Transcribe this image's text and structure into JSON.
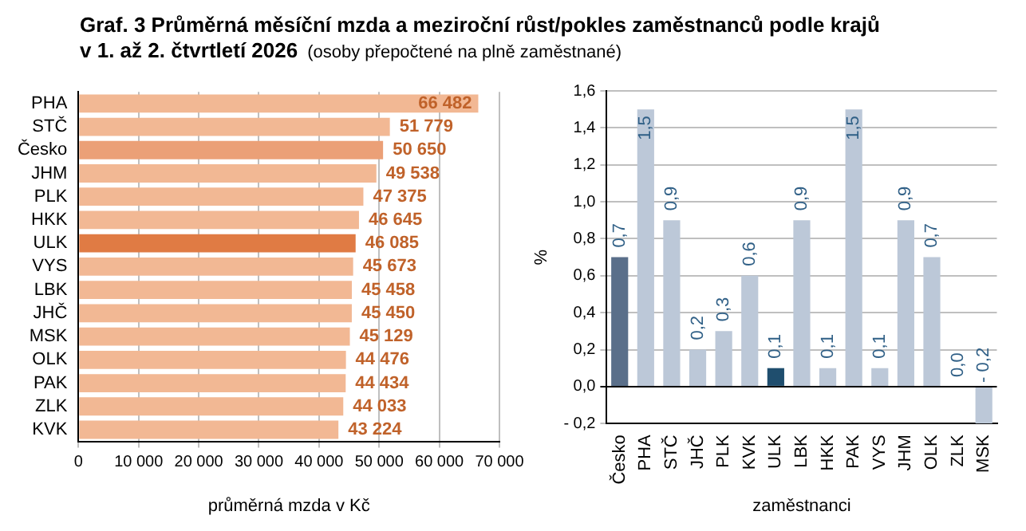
{
  "chart_data": [
    {
      "type": "bar",
      "title": "Graf. 3 Průměrná měsíční mzda a meziroční růst/pokles  zaměstnanců podle krajů v 1. až 2. čtvrtletí 2026",
      "subtitle": "(osoby přepočtené na plně zaměstnané)",
      "orientation": "horizontal",
      "xlabel": "průměrná mzda v Kč",
      "categories": [
        "PHA",
        "STČ",
        "Česko",
        "JHM",
        "PLK",
        "HKK",
        "ULK",
        "VYS",
        "LBK",
        "JHČ",
        "MSK",
        "OLK",
        "PAK",
        "ZLK",
        "KVK"
      ],
      "values": [
        66482,
        51779,
        50650,
        49538,
        47375,
        46645,
        46085,
        45673,
        45458,
        45450,
        45129,
        44476,
        44434,
        44033,
        43224
      ],
      "colors": [
        "#f2b894",
        "#f2b894",
        "#eba077",
        "#f2b894",
        "#f2b894",
        "#f2b894",
        "#e07b44",
        "#f2b894",
        "#f2b894",
        "#f2b894",
        "#f2b894",
        "#f2b894",
        "#f2b894",
        "#f2b894",
        "#f2b894"
      ],
      "value_labels": [
        "66 482",
        "51 779",
        "50 650",
        "49 538",
        "47 375",
        "46 645",
        "46 085",
        "45 673",
        "45 458",
        "45 450",
        "45 129",
        "44 476",
        "44 434",
        "44 033",
        "43 224"
      ],
      "xlim": [
        0,
        70000
      ],
      "xticks": [
        0,
        {
          "value": 10000,
          "label": "10 000"
        },
        {
          "value": 20000,
          "label": "20 000"
        },
        {
          "value": 30000,
          "label": "30 000"
        },
        {
          "value": 40000,
          "label": "40 000"
        },
        {
          "value": 50000,
          "label": "50 000"
        },
        {
          "value": 60000,
          "label": "60 000"
        },
        {
          "value": 70000,
          "label": "70 000"
        }
      ],
      "grid": "x"
    },
    {
      "type": "bar",
      "xlabel": "zaměstnanci",
      "ylabel": "%",
      "categories": [
        "Česko",
        "PHA",
        "STČ",
        "JHČ",
        "PLK",
        "KVK",
        "ULK",
        "LBK",
        "HKK",
        "PAK",
        "VYS",
        "JHM",
        "OLK",
        "ZLK",
        "MSK"
      ],
      "values": [
        0.7,
        1.5,
        0.9,
        0.2,
        0.3,
        0.6,
        0.1,
        0.9,
        0.1,
        1.5,
        0.1,
        0.9,
        0.7,
        0.0,
        -0.2
      ],
      "colors": [
        "#5a6f8a",
        "#bcc8d8",
        "#bcc8d8",
        "#bcc8d8",
        "#bcc8d8",
        "#bcc8d8",
        "#1f4e6e",
        "#bcc8d8",
        "#bcc8d8",
        "#bcc8d8",
        "#bcc8d8",
        "#bcc8d8",
        "#bcc8d8",
        "#bcc8d8",
        "#bcc8d8"
      ],
      "value_labels": [
        "0,7",
        "1,5",
        "0,9",
        "0,2",
        "0,3",
        "0,6",
        "0,1",
        "0,9",
        "0,1",
        "1,5",
        "0,1",
        "0,9",
        "0,7",
        "0,0",
        "- 0,2"
      ],
      "ylim": [
        -0.2,
        1.6
      ],
      "yticks": [
        {
          "value": -0.2,
          "label": "- 0,2"
        },
        {
          "value": 0,
          "label": "0,0"
        },
        {
          "value": 0.2,
          "label": "0,2"
        },
        {
          "value": 0.4,
          "label": "0,4"
        },
        {
          "value": 0.6,
          "label": "0,6"
        },
        {
          "value": 0.8,
          "label": "0,8"
        },
        {
          "value": 1,
          "label": "1,0"
        },
        {
          "value": 1.2,
          "label": "1,2"
        },
        {
          "value": 1.4,
          "label": "1,4"
        },
        {
          "value": 1.6,
          "label": "1,6"
        }
      ],
      "grid": "y"
    }
  ]
}
